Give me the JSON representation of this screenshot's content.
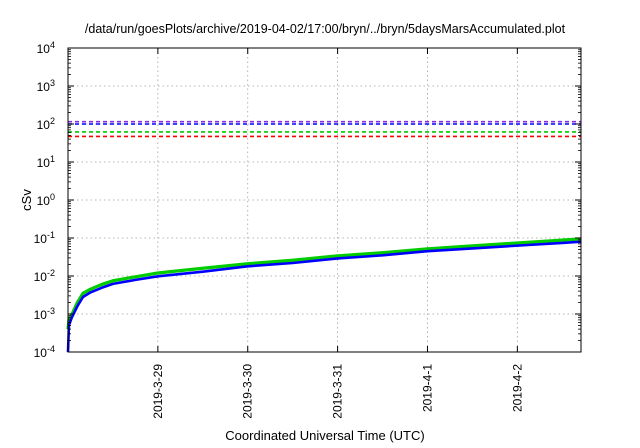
{
  "chart_data": {
    "type": "line",
    "title": "/data/run/goesPlots/archive/2019-04-02/17:00/bryn/../bryn/5daysMarsAccumulated.plot",
    "xlabel": "Coordinated Universal Time (UTC)",
    "ylabel": "cSv",
    "yscale": "log",
    "ylim": [
      0.0001,
      10000
    ],
    "xlim": [
      "2019-03-28T00:00",
      "2019-04-02T17:00"
    ],
    "grid": true,
    "x_ticks": [
      "2019-3-29",
      "2019-3-30",
      "2019-3-31",
      "2019-4-1",
      "2019-4-2"
    ],
    "y_ticks": [
      {
        "base": "10",
        "exp": "-4",
        "value": 0.0001
      },
      {
        "base": "10",
        "exp": "-3",
        "value": 0.001
      },
      {
        "base": "10",
        "exp": "-2",
        "value": 0.01
      },
      {
        "base": "10",
        "exp": "-1",
        "value": 0.1
      },
      {
        "base": "10",
        "exp": "0",
        "value": 1
      },
      {
        "base": "10",
        "exp": "1",
        "value": 10
      },
      {
        "base": "10",
        "exp": "2",
        "value": 100
      },
      {
        "base": "10",
        "exp": "3",
        "value": 1000
      },
      {
        "base": "10",
        "exp": "4",
        "value": 10000
      }
    ],
    "reference_lines": [
      {
        "value": 115,
        "color": "#8a2be2"
      },
      {
        "value": 100,
        "color": "#0000ff"
      },
      {
        "value": 62,
        "color": "#00cc00"
      },
      {
        "value": 47,
        "color": "#ff0000"
      }
    ],
    "series": [
      {
        "color": "#00cc00",
        "x": [
          "2019-03-28T00:00",
          "2019-03-28T00:15",
          "2019-03-28T01:00",
          "2019-03-28T02:30",
          "2019-03-28T04:00",
          "2019-03-28T06:00",
          "2019-03-28T09:00",
          "2019-03-28T12:00",
          "2019-03-28T18:00",
          "2019-03-29T00:00",
          "2019-03-29T12:00",
          "2019-03-30T00:00",
          "2019-03-30T12:00",
          "2019-03-31T00:00",
          "2019-03-31T12:00",
          "2019-04-01T00:00",
          "2019-04-01T12:00",
          "2019-04-02T00:00",
          "2019-04-02T12:00",
          "2019-04-02T17:00"
        ],
        "values": [
          0.0004,
          0.0007,
          0.00095,
          0.002,
          0.0035,
          0.0045,
          0.006,
          0.0075,
          0.0095,
          0.012,
          0.016,
          0.021,
          0.026,
          0.034,
          0.041,
          0.052,
          0.062,
          0.074,
          0.088,
          0.095
        ]
      },
      {
        "color": "#0000ff",
        "x": [
          "2019-03-28T00:00",
          "2019-03-28T00:15",
          "2019-03-28T01:00",
          "2019-03-28T02:30",
          "2019-03-28T04:00",
          "2019-03-28T06:00",
          "2019-03-28T09:00",
          "2019-03-28T12:00",
          "2019-03-28T18:00",
          "2019-03-29T00:00",
          "2019-03-29T12:00",
          "2019-03-30T00:00",
          "2019-03-30T12:00",
          "2019-03-31T00:00",
          "2019-03-31T12:00",
          "2019-04-01T00:00",
          "2019-04-01T12:00",
          "2019-04-02T00:00",
          "2019-04-02T12:00",
          "2019-04-02T17:00"
        ],
        "values": [
          0.0001,
          0.0005,
          0.0008,
          0.0016,
          0.0028,
          0.0037,
          0.0049,
          0.0062,
          0.0079,
          0.0098,
          0.013,
          0.018,
          0.022,
          0.029,
          0.035,
          0.045,
          0.053,
          0.063,
          0.074,
          0.08
        ]
      }
    ]
  }
}
